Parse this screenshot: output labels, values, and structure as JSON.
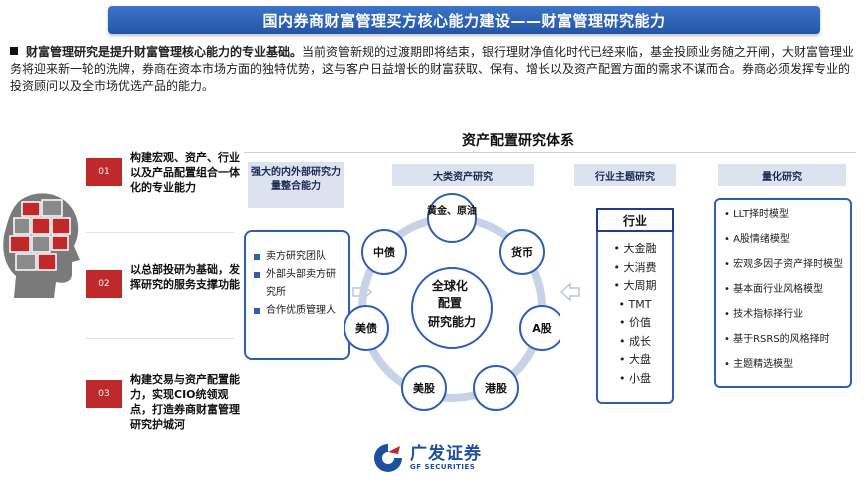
{
  "title": "国内券商财富管理买方核心能力建设——财富管理研究能力",
  "intro": {
    "lead": "财富管理研究是提升财富管理核心能力的专业基础。",
    "body": "当前资管新规的过渡期即将结束，银行理财净值化时代已经来临，基金投顾业务随之开闸，大财富管理业务将迎来新一轮的洗牌，券商在资本市场方面的独特优势，这与客户日益增长的财富获取、保有、增长以及资产配置方面的需求不谋而合。券商必须发挥专业的投资顾问以及全市场优选产品的能力。"
  },
  "items": [
    {
      "num": "01",
      "text": "构建宏观、资产、行业以及产品配置组合一体化的专业能力"
    },
    {
      "num": "02",
      "text": "以总部投研为基础，发挥研究的服务支撑功能"
    },
    {
      "num": "03",
      "text": "构建交易与资产配置能力，实现CIO统领观点，打造券商财富管理研究护城河"
    }
  ],
  "system_title": "资产配置研究体系",
  "left": {
    "head": "强大的内外部研究力量整合能力",
    "items": [
      "卖方研究团队",
      "外部头部卖方研究所",
      "合作优质管理人"
    ]
  },
  "major_asset": {
    "head": "大类资产研究",
    "center": [
      "全球化",
      "配置",
      "研究能力"
    ],
    "nodes": [
      "黄金、原油",
      "货币",
      "A股",
      "港股",
      "美股",
      "美债",
      "中债"
    ]
  },
  "industry": {
    "head": "行业主题研究",
    "label": "行业",
    "items": [
      "大金融",
      "大消费",
      "大周期",
      "TMT",
      "价值",
      "成长",
      "大盘",
      "小盘"
    ]
  },
  "quant": {
    "head": "量化研究",
    "items": [
      "LLT择时模型",
      "A股情绪模型",
      "宏观多因子资产择时模型",
      "基本面行业风格模型",
      "技术指标择行业",
      "基于RSRS的风格择时",
      "主题精选模型"
    ]
  },
  "logo": {
    "cn": "广发证券",
    "en": "GF SECURITIES"
  },
  "colors": {
    "title_bg": "#2255a8",
    "accent_red": "#c0292a",
    "panel_border": "#2f5fb3",
    "head_bg": "#dde3ee"
  }
}
